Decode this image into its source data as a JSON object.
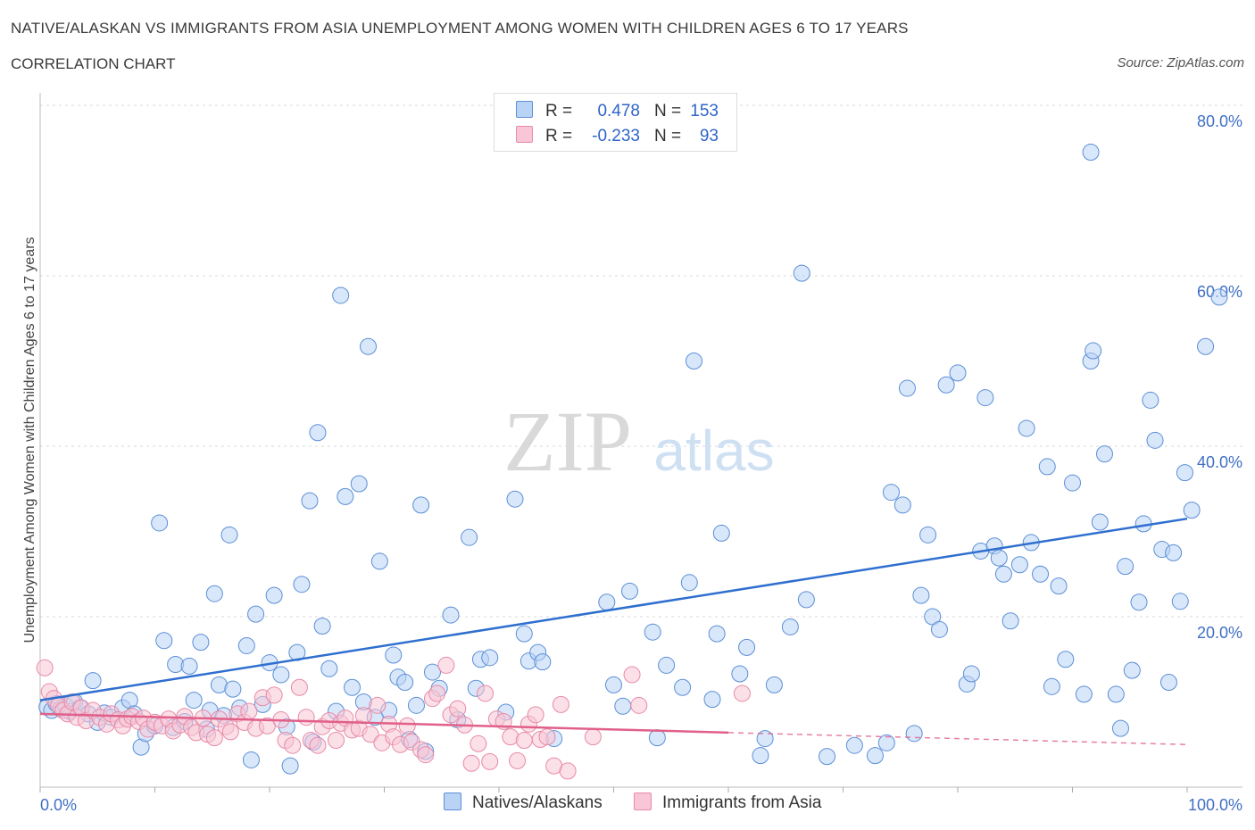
{
  "header": {
    "title": "NATIVE/ALASKAN VS IMMIGRANTS FROM ASIA UNEMPLOYMENT AMONG WOMEN WITH CHILDREN AGES 6 TO 17 YEARS",
    "subtitle": "CORRELATION CHART",
    "source": "Source: ZipAtlas.com"
  },
  "legend": {
    "rows": [
      {
        "r_label": "R =",
        "r_value": "0.478",
        "n_label": "N =",
        "n_value": "153"
      },
      {
        "r_label": "R =",
        "r_value": "-0.233",
        "n_label": "N =",
        "n_value": "93"
      }
    ],
    "series": [
      "Natives/Alaskans",
      "Immigrants from Asia"
    ]
  },
  "watermark": {
    "zip": "ZIP",
    "atlas": "atlas"
  },
  "colors": {
    "blue_fill": "#b9d3f5",
    "blue_stroke": "#5b8fd6",
    "blue_line": "#2f6fcf",
    "pink_fill": "#f8c6d6",
    "pink_stroke": "#e88aa8",
    "pink_line": "#e0608a",
    "tick_text": "#3f6fc4",
    "grid": "#d8d8d8"
  },
  "chart_data": {
    "type": "scatter",
    "title": "NATIVE/ALASKAN VS IMMIGRANTS FROM ASIA UNEMPLOYMENT AMONG WOMEN WITH CHILDREN AGES 6 TO 17 YEARS",
    "xlabel": "",
    "ylabel": "Unemployment Among Women with Children Ages 6 to 17 years",
    "xlim": [
      0,
      100
    ],
    "ylim": [
      0,
      80
    ],
    "x_ticks": [
      "0.0%",
      "100.0%"
    ],
    "y_ticks": [
      "20.0%",
      "40.0%",
      "60.0%",
      "80.0%"
    ],
    "grid": true,
    "legend_position": "top-center",
    "series": [
      {
        "name": "Natives/Alaskans",
        "trend": {
          "x": [
            0,
            100
          ],
          "y": [
            10.2,
            31.5
          ]
        },
        "points": [
          [
            0.6,
            9.4
          ],
          [
            1.0,
            9.0
          ],
          [
            1.4,
            9.8
          ],
          [
            1.8,
            9.2
          ],
          [
            2.2,
            9.6
          ],
          [
            2.6,
            8.9
          ],
          [
            3.0,
            10.0
          ],
          [
            3.5,
            9.3
          ],
          [
            4.2,
            8.6
          ],
          [
            4.6,
            12.5
          ],
          [
            5.0,
            7.6
          ],
          [
            5.6,
            8.7
          ],
          [
            6.2,
            8.2
          ],
          [
            7.2,
            9.3
          ],
          [
            7.8,
            10.2
          ],
          [
            8.2,
            8.6
          ],
          [
            8.8,
            4.7
          ],
          [
            9.2,
            6.3
          ],
          [
            10.0,
            7.2
          ],
          [
            10.4,
            31.0
          ],
          [
            10.8,
            17.2
          ],
          [
            11.6,
            7.0
          ],
          [
            11.8,
            14.4
          ],
          [
            12.6,
            7.7
          ],
          [
            13.0,
            14.2
          ],
          [
            13.4,
            10.2
          ],
          [
            14.0,
            17.0
          ],
          [
            14.5,
            6.8
          ],
          [
            14.8,
            9.0
          ],
          [
            15.2,
            22.7
          ],
          [
            15.6,
            12.0
          ],
          [
            16.0,
            8.4
          ],
          [
            16.5,
            29.6
          ],
          [
            16.8,
            11.5
          ],
          [
            17.4,
            9.3
          ],
          [
            18.0,
            16.6
          ],
          [
            18.4,
            3.2
          ],
          [
            18.8,
            20.3
          ],
          [
            19.4,
            9.7
          ],
          [
            20.0,
            14.6
          ],
          [
            20.4,
            22.5
          ],
          [
            21.0,
            13.2
          ],
          [
            21.5,
            7.1
          ],
          [
            21.8,
            2.5
          ],
          [
            22.4,
            15.8
          ],
          [
            22.8,
            23.8
          ],
          [
            23.5,
            33.6
          ],
          [
            23.8,
            5.3
          ],
          [
            24.2,
            41.6
          ],
          [
            24.6,
            18.9
          ],
          [
            25.2,
            13.9
          ],
          [
            25.8,
            8.9
          ],
          [
            26.2,
            57.7
          ],
          [
            26.6,
            34.1
          ],
          [
            27.2,
            11.7
          ],
          [
            27.8,
            35.6
          ],
          [
            28.2,
            10.0
          ],
          [
            28.6,
            51.7
          ],
          [
            29.2,
            8.2
          ],
          [
            29.6,
            26.5
          ],
          [
            30.4,
            9.0
          ],
          [
            30.8,
            15.5
          ],
          [
            31.2,
            12.9
          ],
          [
            31.8,
            12.3
          ],
          [
            32.2,
            5.6
          ],
          [
            32.8,
            9.6
          ],
          [
            33.2,
            33.1
          ],
          [
            33.6,
            4.2
          ],
          [
            34.2,
            13.5
          ],
          [
            34.8,
            11.6
          ],
          [
            35.8,
            20.2
          ],
          [
            36.4,
            7.9
          ],
          [
            37.4,
            29.3
          ],
          [
            38.0,
            11.6
          ],
          [
            38.4,
            15.0
          ],
          [
            39.2,
            15.2
          ],
          [
            40.6,
            8.8
          ],
          [
            41.4,
            33.8
          ],
          [
            42.2,
            18.0
          ],
          [
            42.6,
            14.8
          ],
          [
            43.4,
            15.8
          ],
          [
            43.8,
            14.7
          ],
          [
            44.8,
            5.7
          ],
          [
            49.4,
            21.7
          ],
          [
            50.0,
            12.0
          ],
          [
            50.8,
            9.5
          ],
          [
            51.4,
            23.0
          ],
          [
            53.4,
            18.2
          ],
          [
            53.8,
            5.8
          ],
          [
            54.6,
            14.3
          ],
          [
            56.0,
            11.7
          ],
          [
            56.6,
            24.0
          ],
          [
            57.0,
            50.0
          ],
          [
            58.6,
            10.3
          ],
          [
            59.0,
            18.0
          ],
          [
            59.4,
            29.8
          ],
          [
            61.0,
            13.3
          ],
          [
            61.6,
            16.4
          ],
          [
            62.8,
            3.7
          ],
          [
            63.2,
            5.7
          ],
          [
            64.0,
            12.0
          ],
          [
            65.4,
            18.8
          ],
          [
            66.4,
            60.3
          ],
          [
            66.8,
            22.0
          ],
          [
            68.6,
            3.6
          ],
          [
            71.0,
            4.9
          ],
          [
            72.8,
            3.7
          ],
          [
            73.8,
            5.2
          ],
          [
            74.2,
            34.6
          ],
          [
            75.2,
            33.1
          ],
          [
            75.6,
            46.8
          ],
          [
            76.2,
            6.3
          ],
          [
            76.8,
            22.5
          ],
          [
            77.4,
            29.6
          ],
          [
            77.8,
            20.0
          ],
          [
            78.4,
            18.5
          ],
          [
            79.0,
            47.2
          ],
          [
            80.0,
            48.6
          ],
          [
            80.8,
            12.1
          ],
          [
            81.2,
            13.3
          ],
          [
            82.0,
            27.7
          ],
          [
            82.4,
            45.7
          ],
          [
            83.2,
            28.3
          ],
          [
            83.6,
            26.9
          ],
          [
            84.0,
            25.0
          ],
          [
            84.6,
            19.5
          ],
          [
            85.4,
            26.1
          ],
          [
            86.0,
            42.1
          ],
          [
            86.4,
            28.7
          ],
          [
            87.2,
            25.0
          ],
          [
            87.8,
            37.6
          ],
          [
            88.2,
            11.8
          ],
          [
            88.8,
            23.6
          ],
          [
            89.4,
            15.0
          ],
          [
            90.0,
            35.7
          ],
          [
            91.0,
            10.9
          ],
          [
            91.6,
            50.0
          ],
          [
            91.8,
            51.2
          ],
          [
            92.4,
            31.1
          ],
          [
            92.8,
            39.1
          ],
          [
            93.8,
            10.9
          ],
          [
            94.2,
            6.9
          ],
          [
            94.6,
            25.9
          ],
          [
            95.2,
            13.7
          ],
          [
            95.8,
            21.7
          ],
          [
            96.2,
            30.9
          ],
          [
            96.8,
            45.4
          ],
          [
            97.2,
            40.7
          ],
          [
            97.8,
            27.9
          ],
          [
            98.4,
            12.3
          ],
          [
            98.8,
            27.5
          ],
          [
            99.4,
            21.8
          ],
          [
            99.8,
            36.9
          ],
          [
            100.4,
            32.5
          ],
          [
            101.6,
            51.7
          ],
          [
            102.8,
            57.5
          ],
          [
            91.6,
            74.5
          ]
        ]
      },
      {
        "name": "Immigrants from Asia",
        "trend": {
          "x": [
            0,
            60
          ],
          "y": [
            8.6,
            6.4
          ]
        },
        "trend_dashed": {
          "x": [
            60,
            100
          ],
          "y": [
            6.4,
            5.0
          ]
        },
        "points": [
          [
            0.4,
            14.0
          ],
          [
            0.8,
            11.2
          ],
          [
            1.2,
            10.4
          ],
          [
            1.6,
            9.6
          ],
          [
            2.0,
            9.0
          ],
          [
            2.4,
            8.6
          ],
          [
            2.8,
            10.0
          ],
          [
            3.2,
            8.2
          ],
          [
            3.6,
            9.3
          ],
          [
            4.0,
            7.8
          ],
          [
            4.6,
            9.0
          ],
          [
            5.2,
            8.2
          ],
          [
            5.8,
            7.4
          ],
          [
            6.2,
            8.6
          ],
          [
            6.8,
            7.9
          ],
          [
            7.2,
            7.2
          ],
          [
            7.6,
            8.0
          ],
          [
            8.0,
            8.3
          ],
          [
            8.6,
            7.7
          ],
          [
            9.0,
            8.1
          ],
          [
            9.4,
            6.8
          ],
          [
            10.0,
            7.6
          ],
          [
            10.6,
            7.2
          ],
          [
            11.2,
            8.0
          ],
          [
            11.6,
            6.6
          ],
          [
            12.2,
            7.3
          ],
          [
            12.6,
            8.3
          ],
          [
            13.2,
            7.0
          ],
          [
            13.6,
            6.4
          ],
          [
            14.2,
            8.1
          ],
          [
            14.6,
            6.2
          ],
          [
            15.2,
            5.8
          ],
          [
            15.6,
            8.0
          ],
          [
            16.2,
            7.1
          ],
          [
            16.6,
            6.5
          ],
          [
            17.2,
            8.6
          ],
          [
            17.8,
            7.6
          ],
          [
            18.2,
            8.9
          ],
          [
            18.8,
            6.9
          ],
          [
            19.4,
            10.5
          ],
          [
            19.8,
            7.2
          ],
          [
            20.4,
            10.8
          ],
          [
            21.0,
            7.9
          ],
          [
            21.4,
            5.5
          ],
          [
            22.0,
            4.9
          ],
          [
            22.6,
            11.7
          ],
          [
            23.2,
            8.2
          ],
          [
            23.6,
            5.5
          ],
          [
            24.2,
            4.9
          ],
          [
            24.6,
            7.1
          ],
          [
            25.2,
            7.8
          ],
          [
            25.8,
            5.5
          ],
          [
            26.2,
            7.5
          ],
          [
            26.6,
            8.1
          ],
          [
            27.2,
            6.7
          ],
          [
            27.8,
            6.9
          ],
          [
            28.2,
            8.4
          ],
          [
            28.8,
            6.2
          ],
          [
            29.4,
            9.6
          ],
          [
            29.8,
            5.2
          ],
          [
            30.4,
            7.4
          ],
          [
            30.8,
            5.9
          ],
          [
            31.4,
            5.0
          ],
          [
            32.0,
            7.2
          ],
          [
            32.4,
            5.3
          ],
          [
            33.2,
            4.4
          ],
          [
            33.6,
            3.8
          ],
          [
            34.2,
            10.4
          ],
          [
            34.6,
            11.0
          ],
          [
            35.4,
            14.3
          ],
          [
            35.8,
            8.5
          ],
          [
            36.4,
            9.2
          ],
          [
            37.0,
            7.3
          ],
          [
            37.6,
            2.8
          ],
          [
            38.2,
            5.1
          ],
          [
            38.8,
            11.0
          ],
          [
            39.2,
            3.0
          ],
          [
            39.8,
            8.0
          ],
          [
            40.4,
            7.7
          ],
          [
            41.0,
            5.9
          ],
          [
            41.6,
            3.1
          ],
          [
            42.2,
            5.5
          ],
          [
            42.6,
            7.4
          ],
          [
            43.2,
            8.5
          ],
          [
            43.6,
            5.6
          ],
          [
            44.2,
            5.9
          ],
          [
            44.8,
            2.5
          ],
          [
            45.4,
            9.7
          ],
          [
            46.0,
            1.9
          ],
          [
            48.2,
            5.9
          ],
          [
            51.6,
            13.2
          ],
          [
            52.2,
            9.6
          ],
          [
            61.2,
            11.0
          ]
        ]
      }
    ]
  }
}
